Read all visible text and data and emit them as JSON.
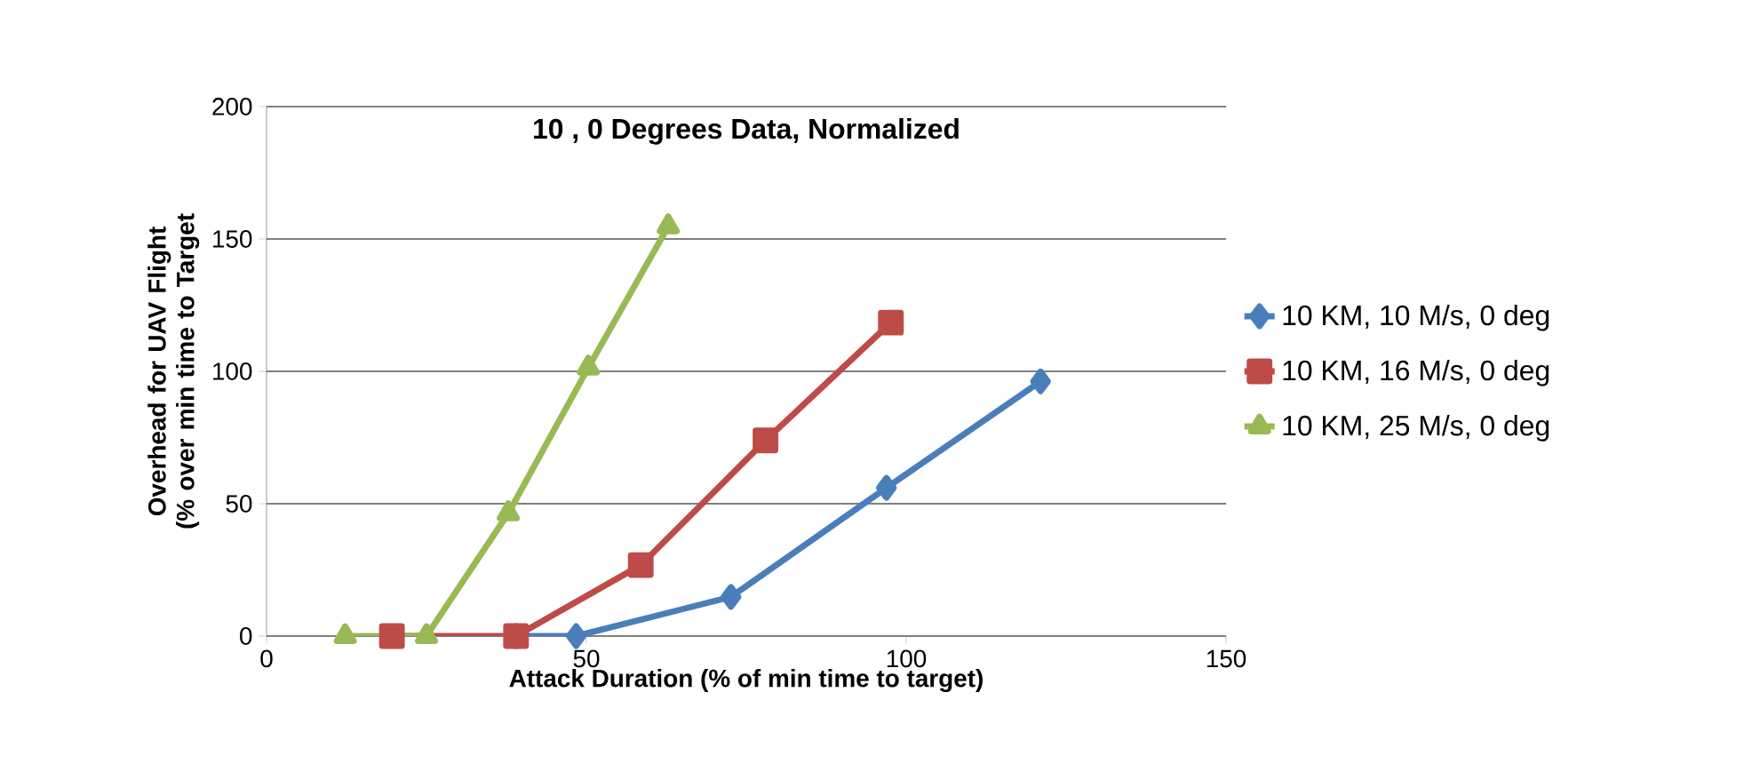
{
  "chart_data": {
    "type": "line",
    "title": "10 , 0 Degrees Data, Normalized",
    "xlabel": "Attack Duration (% of min time to target)",
    "ylabel": "Overhead for UAV Flight  (% over min time to Target",
    "xlim": [
      0,
      150
    ],
    "xticks": [
      0,
      50,
      100,
      150
    ],
    "ylim": [
      0,
      200
    ],
    "yticks": [
      0,
      50,
      100,
      150,
      200
    ],
    "grid": "y",
    "legend": "right",
    "line_style": "solid",
    "series": [
      {
        "name": "10 KM, 10 M/s, 0 deg",
        "color": "#4a7ebb",
        "marker": "diamond",
        "x": [
          39,
          48.4,
          72.6,
          96.9,
          121
        ],
        "values": [
          0,
          0,
          14.8,
          56,
          96.2
        ]
      },
      {
        "name": "10 KM, 16 M/s, 0 deg",
        "color": "#be4b48",
        "marker": "square",
        "x": [
          19.6,
          39,
          58.5,
          78,
          97.6
        ],
        "values": [
          0,
          0,
          26.8,
          73.9,
          118.4
        ]
      },
      {
        "name": "10 KM, 25 M/s, 0 deg",
        "color": "#98b954",
        "marker": "triangle",
        "x": [
          12.3,
          25,
          37.8,
          50.3,
          62.8
        ],
        "values": [
          0,
          0,
          46.4,
          101.4,
          154.8
        ]
      }
    ]
  }
}
